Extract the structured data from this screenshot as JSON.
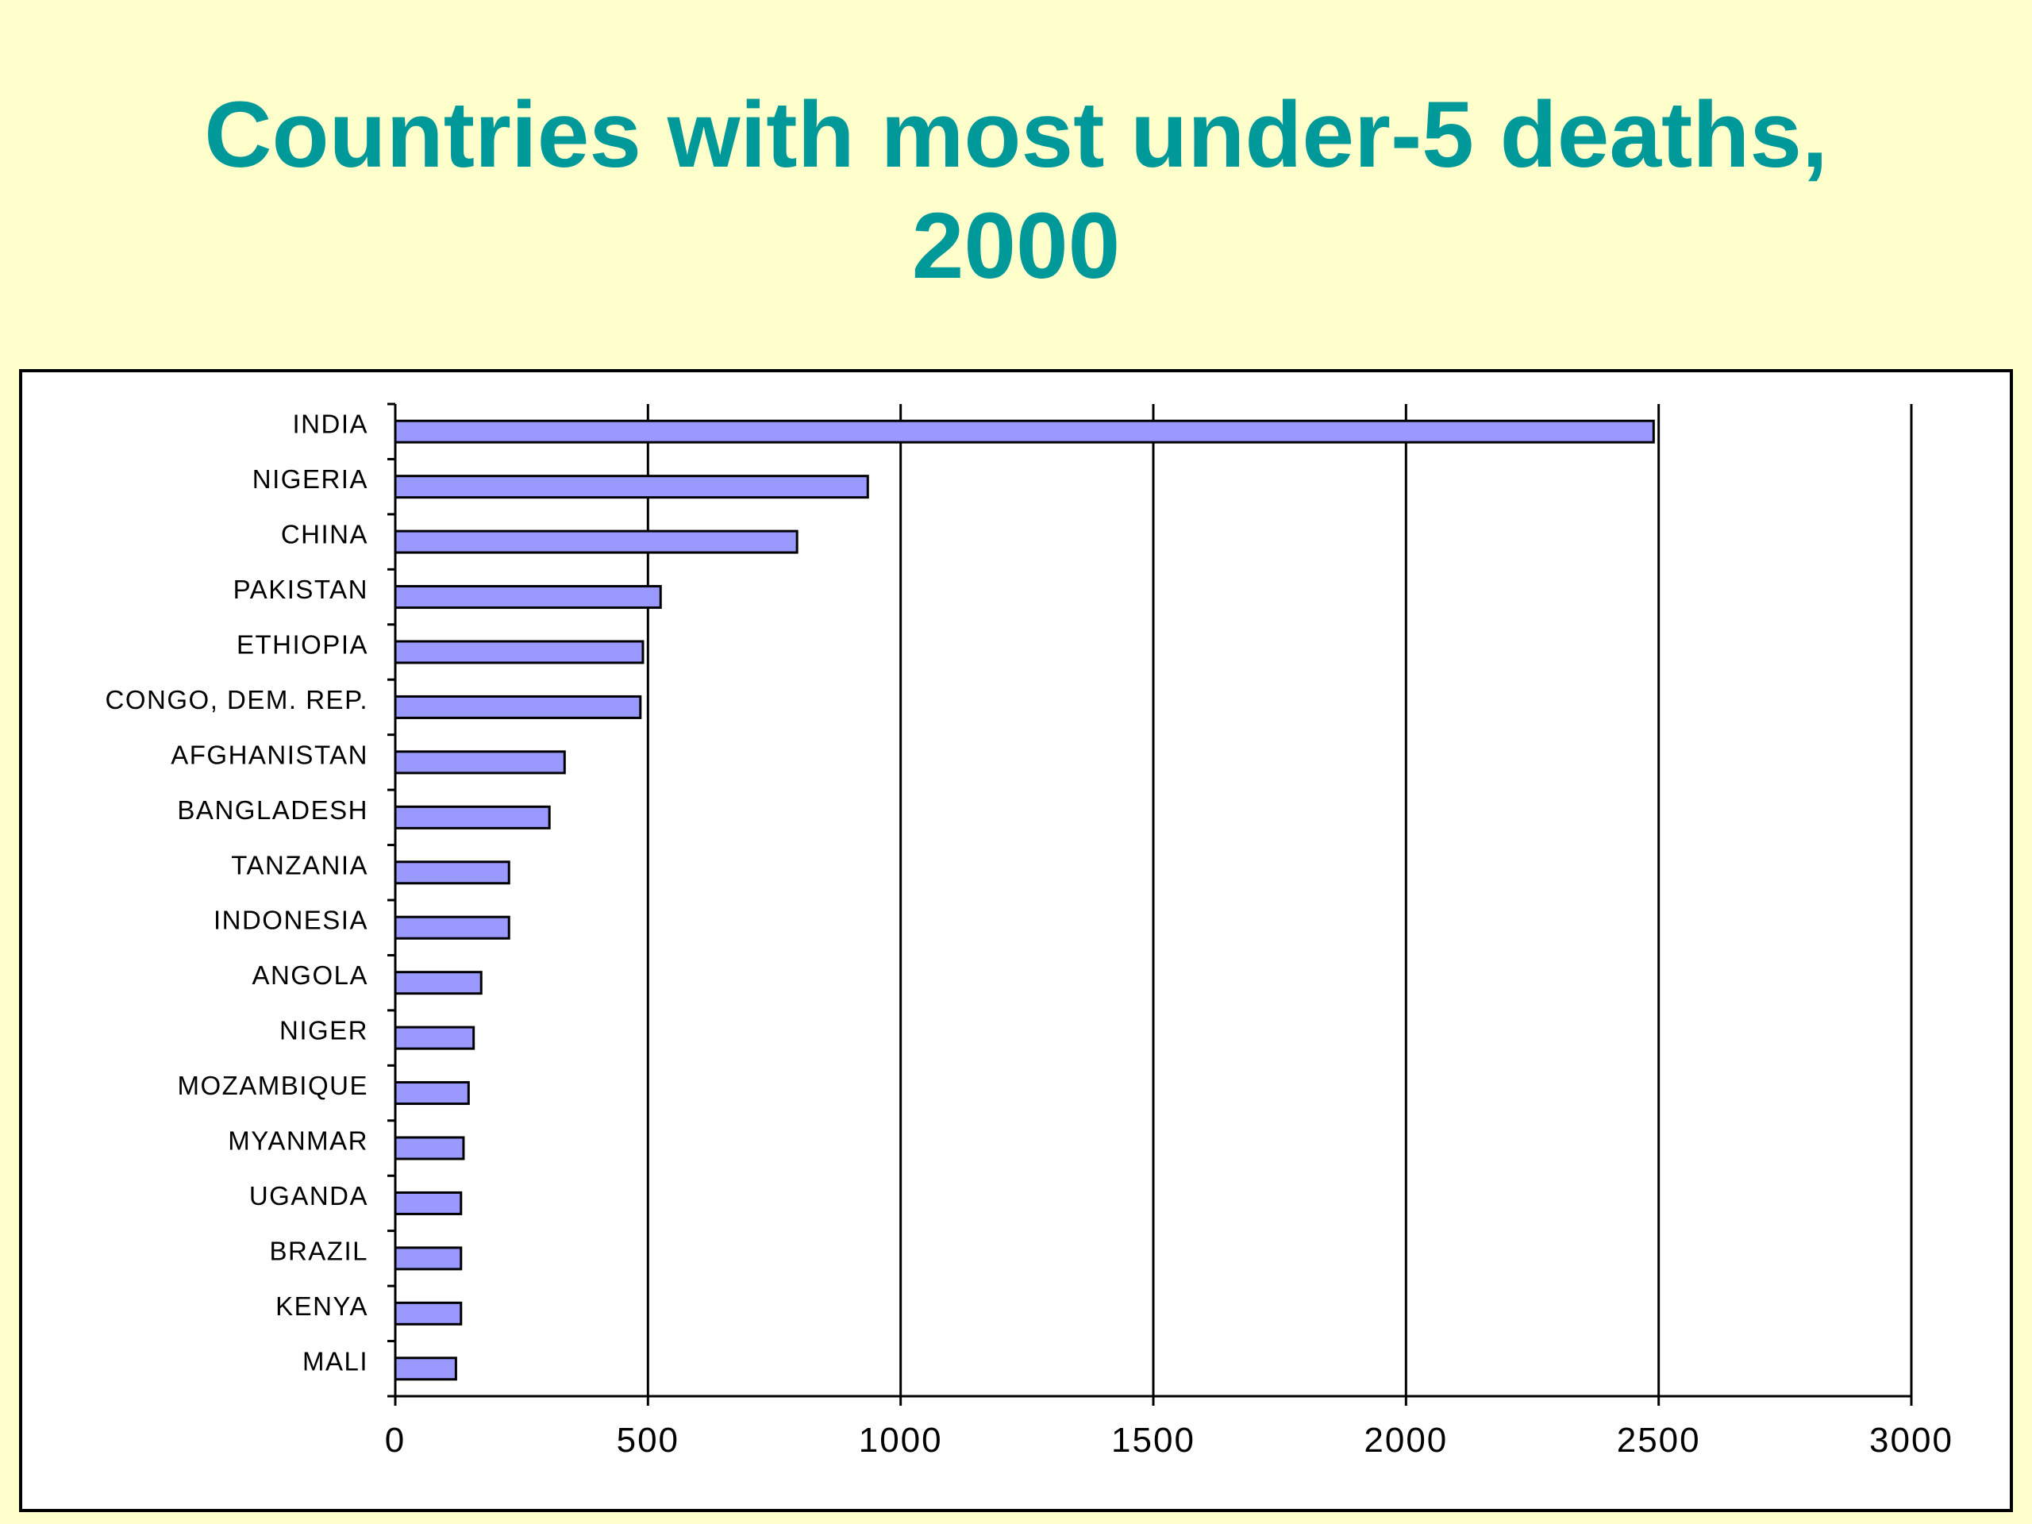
{
  "slide": {
    "title_line1": "Countries with most under-5 deaths,",
    "title_line2": "2000"
  },
  "colors": {
    "background": "#ffffcc",
    "title": "#009999",
    "bar_fill": "#9999ff",
    "bar_stroke": "#000000"
  },
  "chart_data": {
    "type": "bar",
    "orientation": "horizontal",
    "title": "Countries with most under-5 deaths, 2000",
    "xlabel": "",
    "ylabel": "",
    "xlim": [
      0,
      3000
    ],
    "x_ticks": [
      0,
      500,
      1000,
      1500,
      2000,
      2500,
      3000
    ],
    "grid": "vertical major gridlines",
    "legend": "none",
    "categories": [
      "INDIA",
      "NIGERIA",
      "CHINA",
      "PAKISTAN",
      "ETHIOPIA",
      "CONGO, DEM. REP.",
      "AFGHANISTAN",
      "BANGLADESH",
      "TANZANIA",
      "INDONESIA",
      "ANGOLA",
      "NIGER",
      "MOZAMBIQUE",
      "MYANMAR",
      "UGANDA",
      "BRAZIL",
      "KENYA",
      "MALI"
    ],
    "values": [
      2490,
      935,
      795,
      525,
      490,
      485,
      335,
      305,
      225,
      225,
      170,
      155,
      145,
      135,
      130,
      130,
      130,
      120
    ]
  }
}
